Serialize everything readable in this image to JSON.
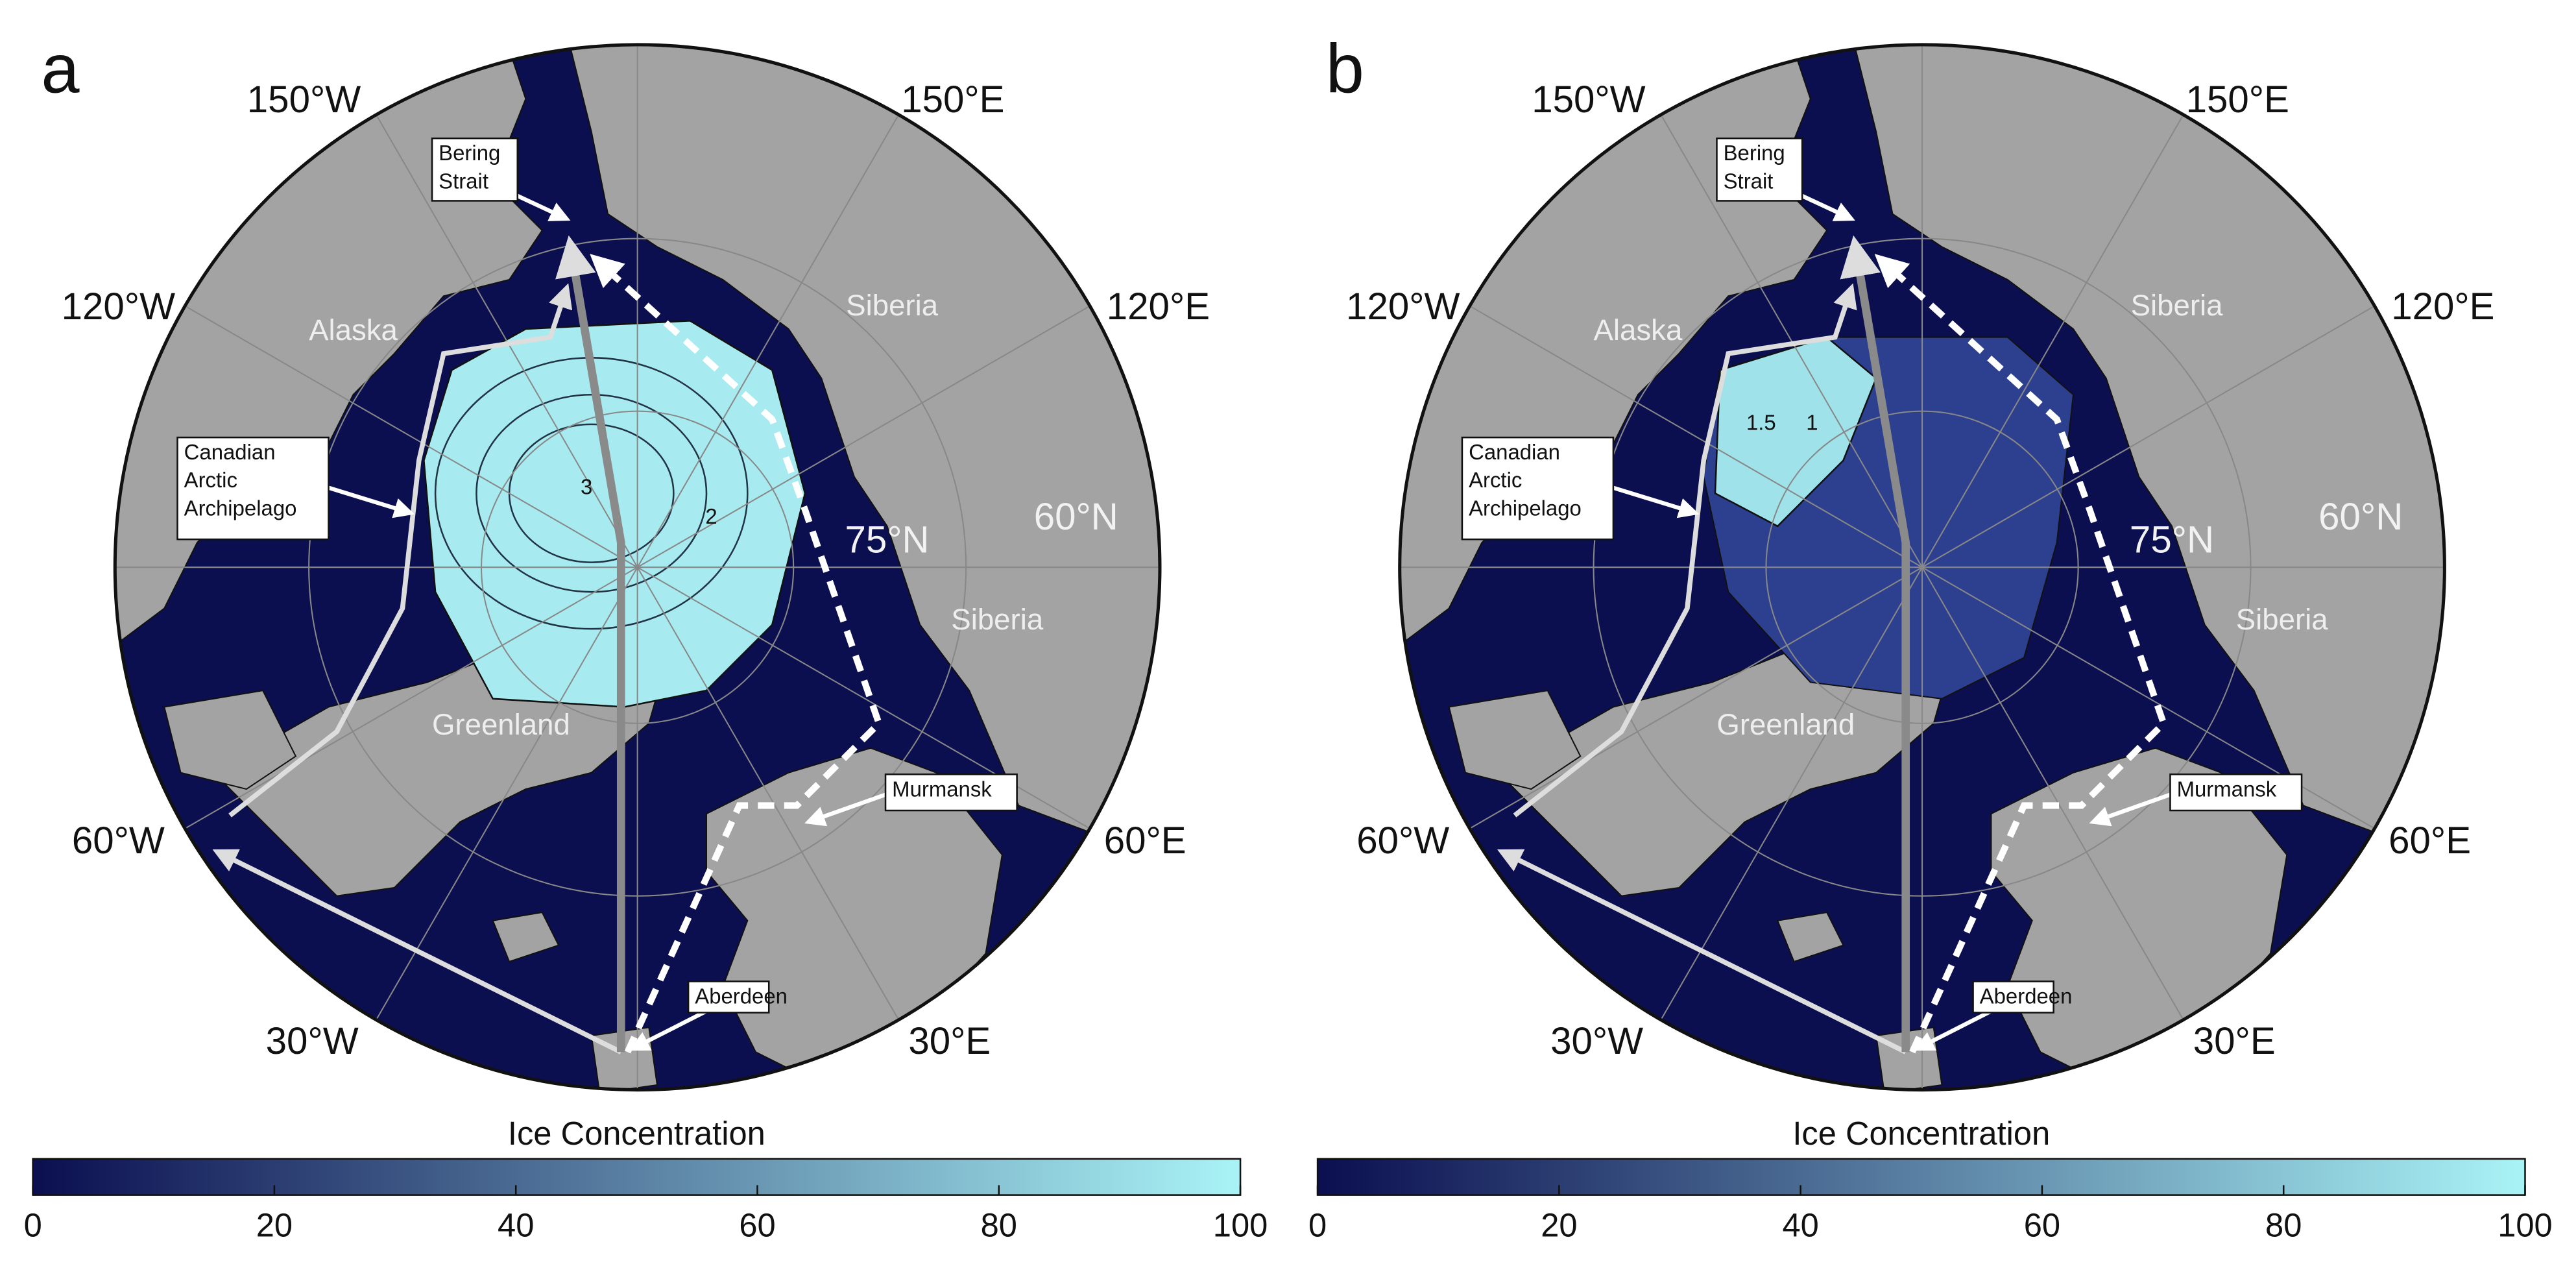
{
  "panels": [
    {
      "label": "a",
      "lon_labels": [
        "150°W",
        "150°E",
        "120°W",
        "120°E",
        "60°W",
        "60°E",
        "30°W",
        "30°E"
      ],
      "lat_labels": [
        "75°N",
        "60°N"
      ],
      "regions": [
        "Alaska",
        "Siberia",
        "Siberia",
        "Greenland"
      ],
      "callouts": [
        [
          "Bering",
          "Strait"
        ],
        [
          "Canadian",
          "Arctic",
          "Archipelago"
        ],
        [
          "Murmansk"
        ],
        [
          "Aberdeen"
        ]
      ],
      "contour_labels": [
        3,
        2
      ],
      "colorbar": {
        "label": "Ice Concentration",
        "xlim": [
          0,
          100
        ],
        "xticks": [
          0,
          20,
          40,
          60,
          80,
          100
        ],
        "colors": [
          "#0b0f50",
          "#a9f3f6"
        ]
      }
    },
    {
      "label": "b",
      "lon_labels": [
        "150°W",
        "150°E",
        "120°W",
        "120°E",
        "60°W",
        "60°E",
        "30°W",
        "30°E"
      ],
      "lat_labels": [
        "75°N",
        "60°N"
      ],
      "regions": [
        "Alaska",
        "Siberia",
        "Siberia",
        "Greenland"
      ],
      "callouts": [
        [
          "Bering",
          "Strait"
        ],
        [
          "Canadian",
          "Arctic",
          "Archipelago"
        ],
        [
          "Murmansk"
        ],
        [
          "Aberdeen"
        ]
      ],
      "contour_labels": [
        1.5,
        1
      ],
      "colorbar": {
        "label": "Ice Concentration",
        "xlim": [
          0,
          100
        ],
        "xticks": [
          0,
          20,
          40,
          60,
          80,
          100
        ],
        "colors": [
          "#0b0f50",
          "#a9f3f6"
        ]
      }
    }
  ]
}
